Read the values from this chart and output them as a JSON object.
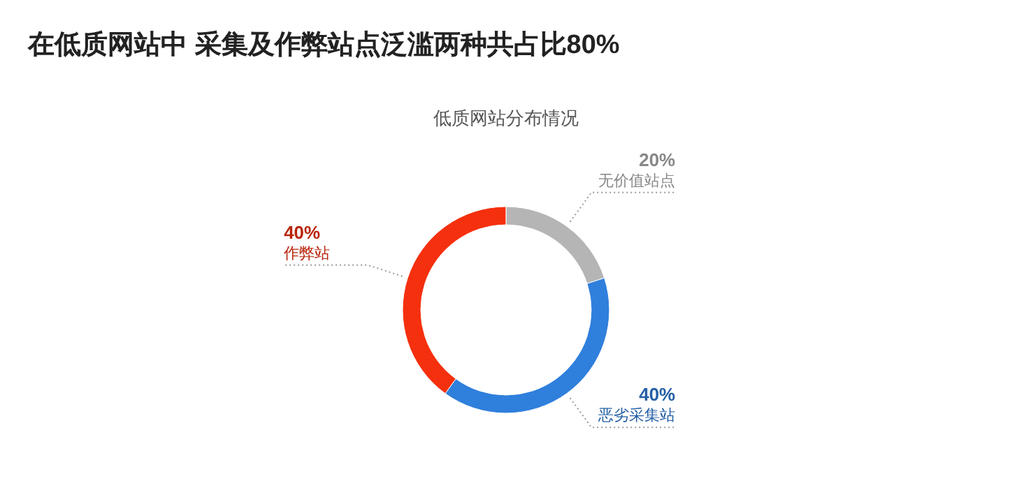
{
  "chart_data": {
    "type": "donut",
    "title": "在低质网站中 采集及作弊站点泛滥两种共占比80%",
    "subtitle": "低质网站分布情况",
    "categories": [
      "无价值站点",
      "恶劣采集站",
      "作弊站"
    ],
    "values": [
      20,
      40,
      40
    ],
    "value_labels": [
      "20%",
      "40%",
      "40%"
    ],
    "colors": [
      "#b5b5b5",
      "#2f7fdc",
      "#f5300e"
    ],
    "legend": false
  }
}
